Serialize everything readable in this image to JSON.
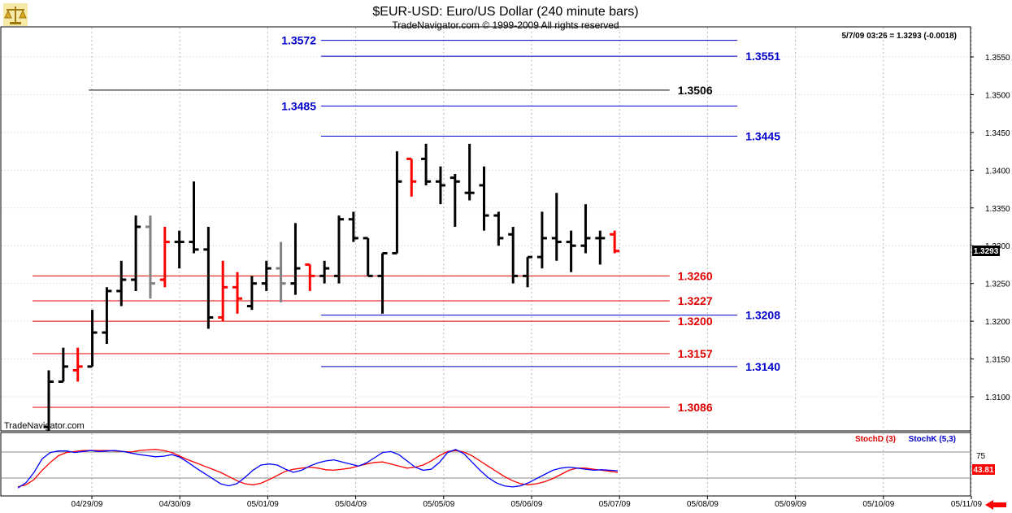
{
  "header": {
    "title": "$EUR-USD:  Euro/US Dollar  (240 minute bars)",
    "subtitle": "TradeNavigator.com © 1999-2009 All rights reserved",
    "quote": "5/7/09 03:26 = 1.3293 (-0.0018)",
    "watermark": "TradeNavigator.com",
    "last_price": "1.3293",
    "stoch_value": "43.81"
  },
  "colors": {
    "bars": "#000000",
    "down_bars": "#ff0000",
    "neutral_bars": "#808080",
    "support": "#e00000",
    "resistance": "#0000cc",
    "pivot": "#000000",
    "stochD": "#ff0000",
    "stochK": "#0000ff",
    "price_box": "#000000",
    "stoch_box": "#ff0000"
  },
  "chart_data": [
    {
      "type": "ohlc",
      "name": "price",
      "x_tick_labels": [
        "04/29/09",
        "04/30/09",
        "05/01/09",
        "05/04/09",
        "05/05/09",
        "05/06/09",
        "05/07/09",
        "05/08/09",
        "05/09/09",
        "05/10/09",
        "05/11/09"
      ],
      "y_ticks": [
        1.31,
        1.315,
        1.32,
        1.325,
        1.33,
        1.335,
        1.34,
        1.345,
        1.35,
        1.355
      ],
      "ylim": [
        1.3055,
        1.358
      ],
      "bars": [
        {
          "o": 1.306,
          "h": 1.3135,
          "l": 1.3055,
          "c": 1.312,
          "col": "up"
        },
        {
          "o": 1.312,
          "h": 1.3165,
          "l": 1.312,
          "c": 1.314,
          "col": "up"
        },
        {
          "o": 1.3135,
          "h": 1.3165,
          "l": 1.312,
          "c": 1.314,
          "col": "down"
        },
        {
          "o": 1.314,
          "h": 1.3215,
          "l": 1.314,
          "c": 1.3185,
          "col": "up"
        },
        {
          "o": 1.3185,
          "h": 1.3245,
          "l": 1.317,
          "c": 1.324,
          "col": "up"
        },
        {
          "o": 1.324,
          "h": 1.328,
          "l": 1.322,
          "c": 1.3255,
          "col": "up"
        },
        {
          "o": 1.3255,
          "h": 1.334,
          "l": 1.324,
          "c": 1.3325,
          "col": "up"
        },
        {
          "o": 1.3325,
          "h": 1.334,
          "l": 1.323,
          "c": 1.325,
          "col": "neutral"
        },
        {
          "o": 1.3255,
          "h": 1.3325,
          "l": 1.3245,
          "c": 1.3305,
          "col": "down"
        },
        {
          "o": 1.3305,
          "h": 1.332,
          "l": 1.327,
          "c": 1.3305,
          "col": "up"
        },
        {
          "o": 1.3305,
          "h": 1.3385,
          "l": 1.329,
          "c": 1.3295,
          "col": "up"
        },
        {
          "o": 1.3295,
          "h": 1.3325,
          "l": 1.319,
          "c": 1.3205,
          "col": "up"
        },
        {
          "o": 1.3205,
          "h": 1.328,
          "l": 1.32,
          "c": 1.3245,
          "col": "down"
        },
        {
          "o": 1.3245,
          "h": 1.3265,
          "l": 1.321,
          "c": 1.323,
          "col": "down"
        },
        {
          "o": 1.322,
          "h": 1.326,
          "l": 1.3215,
          "c": 1.325,
          "col": "up"
        },
        {
          "o": 1.325,
          "h": 1.328,
          "l": 1.324,
          "c": 1.327,
          "col": "up"
        },
        {
          "o": 1.327,
          "h": 1.3305,
          "l": 1.3225,
          "c": 1.325,
          "col": "neutral"
        },
        {
          "o": 1.325,
          "h": 1.333,
          "l": 1.3235,
          "c": 1.327,
          "col": "up"
        },
        {
          "o": 1.3275,
          "h": 1.3275,
          "l": 1.324,
          "c": 1.326,
          "col": "down"
        },
        {
          "o": 1.326,
          "h": 1.328,
          "l": 1.325,
          "c": 1.327,
          "col": "up"
        },
        {
          "o": 1.326,
          "h": 1.334,
          "l": 1.325,
          "c": 1.3335,
          "col": "up"
        },
        {
          "o": 1.3335,
          "h": 1.3345,
          "l": 1.3305,
          "c": 1.331,
          "col": "up"
        },
        {
          "o": 1.331,
          "h": 1.331,
          "l": 1.326,
          "c": 1.326,
          "col": "up"
        },
        {
          "o": 1.326,
          "h": 1.329,
          "l": 1.321,
          "c": 1.329,
          "col": "up"
        },
        {
          "o": 1.329,
          "h": 1.3425,
          "l": 1.329,
          "c": 1.3385,
          "col": "up"
        },
        {
          "o": 1.3415,
          "h": 1.3415,
          "l": 1.3365,
          "c": 1.3385,
          "col": "down"
        },
        {
          "o": 1.3415,
          "h": 1.3435,
          "l": 1.338,
          "c": 1.3385,
          "col": "up"
        },
        {
          "o": 1.3385,
          "h": 1.3405,
          "l": 1.3355,
          "c": 1.338,
          "col": "up"
        },
        {
          "o": 1.339,
          "h": 1.3395,
          "l": 1.3325,
          "c": 1.3385,
          "col": "up"
        },
        {
          "o": 1.337,
          "h": 1.3435,
          "l": 1.336,
          "c": 1.337,
          "col": "up"
        },
        {
          "o": 1.338,
          "h": 1.3405,
          "l": 1.332,
          "c": 1.334,
          "col": "up"
        },
        {
          "o": 1.334,
          "h": 1.3345,
          "l": 1.33,
          "c": 1.331,
          "col": "up"
        },
        {
          "o": 1.3315,
          "h": 1.3325,
          "l": 1.325,
          "c": 1.326,
          "col": "up"
        },
        {
          "o": 1.326,
          "h": 1.3285,
          "l": 1.3245,
          "c": 1.3285,
          "col": "up"
        },
        {
          "o": 1.3285,
          "h": 1.3345,
          "l": 1.327,
          "c": 1.331,
          "col": "up"
        },
        {
          "o": 1.331,
          "h": 1.337,
          "l": 1.328,
          "c": 1.3305,
          "col": "up"
        },
        {
          "o": 1.3305,
          "h": 1.332,
          "l": 1.3265,
          "c": 1.33,
          "col": "up"
        },
        {
          "o": 1.33,
          "h": 1.3355,
          "l": 1.329,
          "c": 1.331,
          "col": "up"
        },
        {
          "o": 1.331,
          "h": 1.332,
          "l": 1.3275,
          "c": 1.331,
          "col": "up"
        },
        {
          "o": 1.3315,
          "h": 1.332,
          "l": 1.329,
          "c": 1.3293,
          "col": "down"
        }
      ],
      "levels": [
        {
          "value": 1.3572,
          "label": "1.3572",
          "kind": "resistance",
          "label_side": "left",
          "x_start": 0.33,
          "x_end": 0.76
        },
        {
          "value": 1.3551,
          "label": "1.3551",
          "kind": "resistance",
          "label_side": "right",
          "x_start": 0.33,
          "x_end": 0.76
        },
        {
          "value": 1.3506,
          "label": "1.3506",
          "kind": "pivot",
          "label_side": "right",
          "x_start": 0.09,
          "x_end": 0.69
        },
        {
          "value": 1.3485,
          "label": "1.3485",
          "kind": "resistance",
          "label_side": "left",
          "x_start": 0.33,
          "x_end": 0.76
        },
        {
          "value": 1.3445,
          "label": "1.3445",
          "kind": "resistance",
          "label_side": "right",
          "x_start": 0.33,
          "x_end": 0.76
        },
        {
          "value": 1.326,
          "label": "1.3260",
          "kind": "support",
          "label_side": "right",
          "x_start": 0.0,
          "x_end": 0.69
        },
        {
          "value": 1.3227,
          "label": "1.3227",
          "kind": "support",
          "label_side": "right",
          "x_start": 0.0,
          "x_end": 0.69
        },
        {
          "value": 1.3208,
          "label": "1.3208",
          "kind": "resistance",
          "label_side": "right",
          "x_start": 0.33,
          "x_end": 0.76
        },
        {
          "value": 1.32,
          "label": "1.3200",
          "kind": "support",
          "label_side": "right",
          "x_start": 0.0,
          "x_end": 0.69
        },
        {
          "value": 1.3157,
          "label": "1.3157",
          "kind": "support",
          "label_side": "right",
          "x_start": 0.0,
          "x_end": 0.69
        },
        {
          "value": 1.314,
          "label": "1.3140",
          "kind": "resistance",
          "label_side": "right",
          "x_start": 0.33,
          "x_end": 0.76
        },
        {
          "value": 1.3086,
          "label": "1.3086",
          "kind": "support",
          "label_side": "right",
          "x_start": 0.0,
          "x_end": 0.69
        }
      ]
    },
    {
      "type": "line",
      "name": "stochastic",
      "y_tick_labels": [
        "75"
      ],
      "ylim": [
        0,
        100
      ],
      "series": [
        {
          "name": "StochD (3)",
          "values": [
            8,
            12,
            22,
            40,
            55,
            68,
            74,
            76,
            78,
            78,
            78,
            78,
            77,
            76,
            75,
            78,
            79,
            80,
            78,
            74,
            67,
            60,
            54,
            48,
            42,
            36,
            28,
            20,
            14,
            12,
            15,
            22,
            30,
            38,
            42,
            44,
            46,
            44,
            41,
            40,
            42,
            44,
            48,
            52,
            55,
            56,
            52,
            48,
            44,
            46,
            50,
            58,
            68,
            76,
            78,
            75,
            68,
            58,
            48,
            38,
            28,
            20,
            14,
            12,
            14,
            18,
            24,
            32,
            40,
            44,
            44,
            42,
            40,
            38,
            36
          ]
        },
        {
          "name": "StochK (5,3)",
          "values": [
            6,
            16,
            36,
            62,
            74,
            77,
            77,
            74,
            76,
            78,
            76,
            77,
            78,
            76,
            73,
            70,
            68,
            66,
            67,
            70,
            65,
            55,
            44,
            34,
            24,
            14,
            10,
            14,
            26,
            40,
            50,
            52,
            50,
            42,
            36,
            40,
            48,
            54,
            58,
            60,
            56,
            52,
            48,
            54,
            64,
            74,
            76,
            70,
            58,
            46,
            40,
            42,
            55,
            74,
            80,
            72,
            56,
            40,
            26,
            16,
            10,
            8,
            10,
            16,
            24,
            32,
            40,
            44,
            46,
            44,
            42,
            40,
            41,
            40,
            39
          ]
        }
      ]
    }
  ]
}
